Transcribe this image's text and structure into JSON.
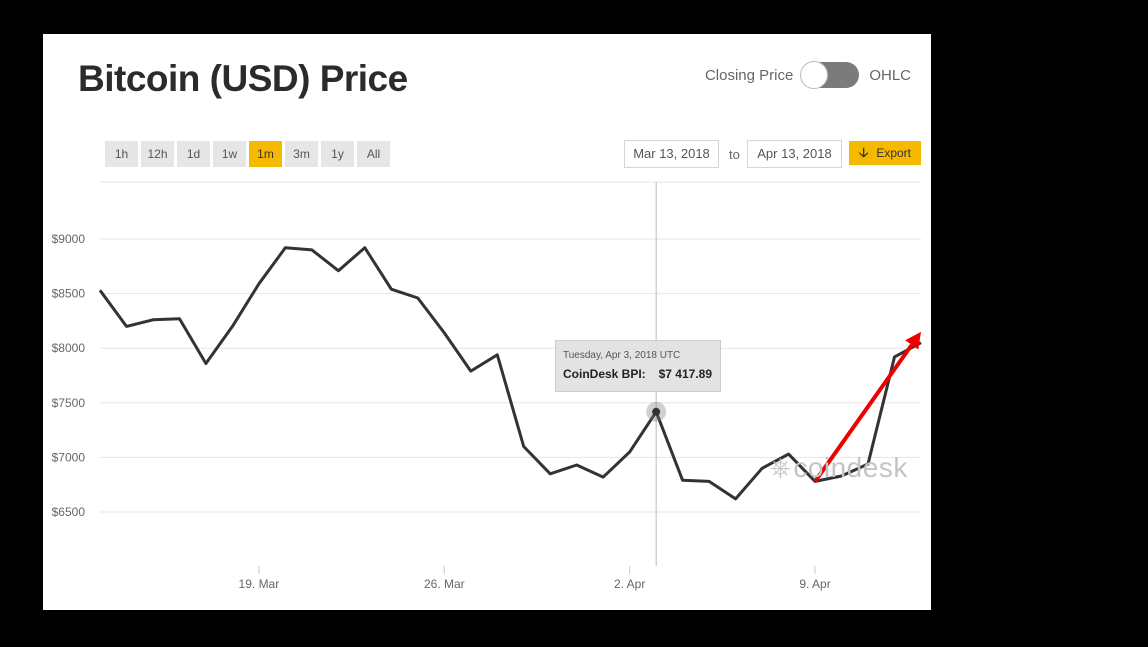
{
  "header": {
    "title": "Bitcoin (USD) Price",
    "toggle_left": "Closing Price",
    "toggle_right": "OHLC"
  },
  "range_buttons": [
    {
      "label": "1h",
      "active": false
    },
    {
      "label": "12h",
      "active": false
    },
    {
      "label": "1d",
      "active": false
    },
    {
      "label": "1w",
      "active": false
    },
    {
      "label": "1m",
      "active": true
    },
    {
      "label": "3m",
      "active": false
    },
    {
      "label": "1y",
      "active": false
    },
    {
      "label": "All",
      "active": false
    }
  ],
  "date_range": {
    "from": "Mar 13, 2018",
    "to_label": "to",
    "to": "Apr 13, 2018"
  },
  "export": {
    "label": "Export",
    "icon": "download-arrow-icon"
  },
  "tooltip": {
    "date": "Tuesday, Apr 3, 2018 UTC",
    "label": "CoinDesk BPI:",
    "value": "$7 417.89"
  },
  "watermark": "coindesk",
  "colors": {
    "accent": "#f5b900",
    "line": "#333333",
    "annotation_arrow": "#ee0000"
  },
  "chart_data": {
    "type": "line",
    "title": "Bitcoin (USD) Price",
    "x_range": [
      "2018-03-13",
      "2018-04-13"
    ],
    "ylim": [
      6000,
      9500
    ],
    "y_ticks": [
      {
        "value": 6500,
        "label": "$6500"
      },
      {
        "value": 7000,
        "label": "$7000"
      },
      {
        "value": 7500,
        "label": "$7500"
      },
      {
        "value": 8000,
        "label": "$8000"
      },
      {
        "value": 8500,
        "label": "$8500"
      },
      {
        "value": 9000,
        "label": "$9000"
      }
    ],
    "x_ticks": [
      {
        "date": "2018-03-19",
        "label": "19. Mar"
      },
      {
        "date": "2018-03-26",
        "label": "26. Mar"
      },
      {
        "date": "2018-04-02",
        "label": "2. Apr"
      },
      {
        "date": "2018-04-09",
        "label": "9. Apr"
      }
    ],
    "grid": true,
    "series": [
      {
        "points": [
          [
            "2018-03-13",
            8530
          ],
          [
            "2018-03-14",
            8200
          ],
          [
            "2018-03-15",
            8260
          ],
          [
            "2018-03-16",
            8270
          ],
          [
            "2018-03-17",
            7860
          ],
          [
            "2018-03-18",
            8200
          ],
          [
            "2018-03-19",
            8590
          ],
          [
            "2018-03-20",
            8920
          ],
          [
            "2018-03-21",
            8900
          ],
          [
            "2018-03-22",
            8710
          ],
          [
            "2018-03-23",
            8920
          ],
          [
            "2018-03-24",
            8540
          ],
          [
            "2018-03-25",
            8460
          ],
          [
            "2018-03-26",
            8140
          ],
          [
            "2018-03-27",
            7790
          ],
          [
            "2018-03-28",
            7940
          ],
          [
            "2018-03-29",
            7100
          ],
          [
            "2018-03-30",
            6850
          ],
          [
            "2018-03-31",
            6930
          ],
          [
            "2018-04-01",
            6820
          ],
          [
            "2018-04-02",
            7050
          ],
          [
            "2018-04-03",
            7417.89
          ],
          [
            "2018-04-04",
            6790
          ],
          [
            "2018-04-05",
            6780
          ],
          [
            "2018-04-06",
            6620
          ],
          [
            "2018-04-07",
            6900
          ],
          [
            "2018-04-08",
            7030
          ],
          [
            "2018-04-09",
            6780
          ],
          [
            "2018-04-10",
            6830
          ],
          [
            "2018-04-11",
            6940
          ],
          [
            "2018-04-12",
            7920
          ],
          [
            "2018-04-13",
            8050
          ]
        ]
      }
    ],
    "highlight": {
      "date": "2018-04-03",
      "value": 7417.89
    },
    "annotation_arrow": {
      "from": [
        "2018-04-09",
        6780
      ],
      "to": [
        "2018-04-13",
        8150
      ]
    }
  }
}
